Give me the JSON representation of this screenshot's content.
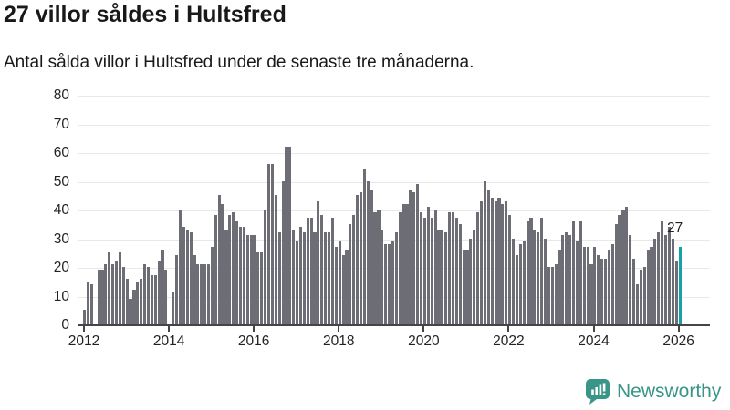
{
  "title": "27 villor såldes i Hultsfred",
  "subtitle": "Antal sålda villor i Hultsfred under de senaste tre månaderna.",
  "annotation_label": "27",
  "logo": {
    "text": "Newsworthy"
  },
  "colors": {
    "bar": "#6d6d75",
    "highlight": "#14a2a8",
    "grid": "#e8e8e8",
    "axis": "#454545",
    "text": "#191919",
    "logo_teal": "#3a9589"
  },
  "chart_data": {
    "type": "bar",
    "title": "27 villor såldes i Hultsfred",
    "subtitle": "Antal sålda villor i Hultsfred under de senaste tre månaderna.",
    "frequency": "monthly",
    "x_start": "2012-01",
    "x_end": "2026-01",
    "x_tick_labels": [
      "2012",
      "2014",
      "2016",
      "2018",
      "2020",
      "2022",
      "2024",
      "2026"
    ],
    "y_ticks": [
      0,
      10,
      20,
      30,
      40,
      50,
      60,
      70,
      80
    ],
    "ylim": [
      0,
      80
    ],
    "grid": true,
    "legend": false,
    "highlight_last": true,
    "highlight_value": 27,
    "values": [
      5,
      15,
      14,
      0,
      19,
      19,
      21,
      25,
      21,
      22,
      25,
      20,
      16,
      9,
      12,
      15,
      16,
      21,
      20,
      17,
      17,
      22,
      26,
      19,
      0,
      11,
      24,
      40,
      34,
      33,
      32,
      24,
      21,
      21,
      21,
      21,
      27,
      38,
      45,
      42,
      33,
      38,
      39,
      36,
      34,
      34,
      31,
      31,
      31,
      25,
      25,
      40,
      56,
      56,
      45,
      32,
      50,
      62,
      62,
      33,
      29,
      34,
      32,
      37,
      37,
      32,
      43,
      38,
      32,
      32,
      37,
      27,
      29,
      24,
      26,
      35,
      38,
      45,
      46,
      54,
      50,
      47,
      39,
      40,
      33,
      28,
      28,
      29,
      32,
      39,
      42,
      42,
      47,
      46,
      49,
      39,
      37,
      41,
      37,
      40,
      33,
      33,
      32,
      39,
      39,
      37,
      35,
      26,
      26,
      30,
      33,
      39,
      43,
      50,
      47,
      44,
      43,
      44,
      42,
      43,
      38,
      30,
      24,
      28,
      29,
      36,
      37,
      33,
      32,
      37,
      30,
      20,
      20,
      21,
      26,
      31,
      32,
      31,
      36,
      29,
      36,
      27,
      27,
      21,
      27,
      24,
      23,
      23,
      26,
      28,
      35,
      38,
      40,
      41,
      31,
      23,
      14,
      19,
      20,
      26,
      27,
      30,
      32,
      36,
      31,
      34,
      30,
      22,
      27
    ]
  }
}
